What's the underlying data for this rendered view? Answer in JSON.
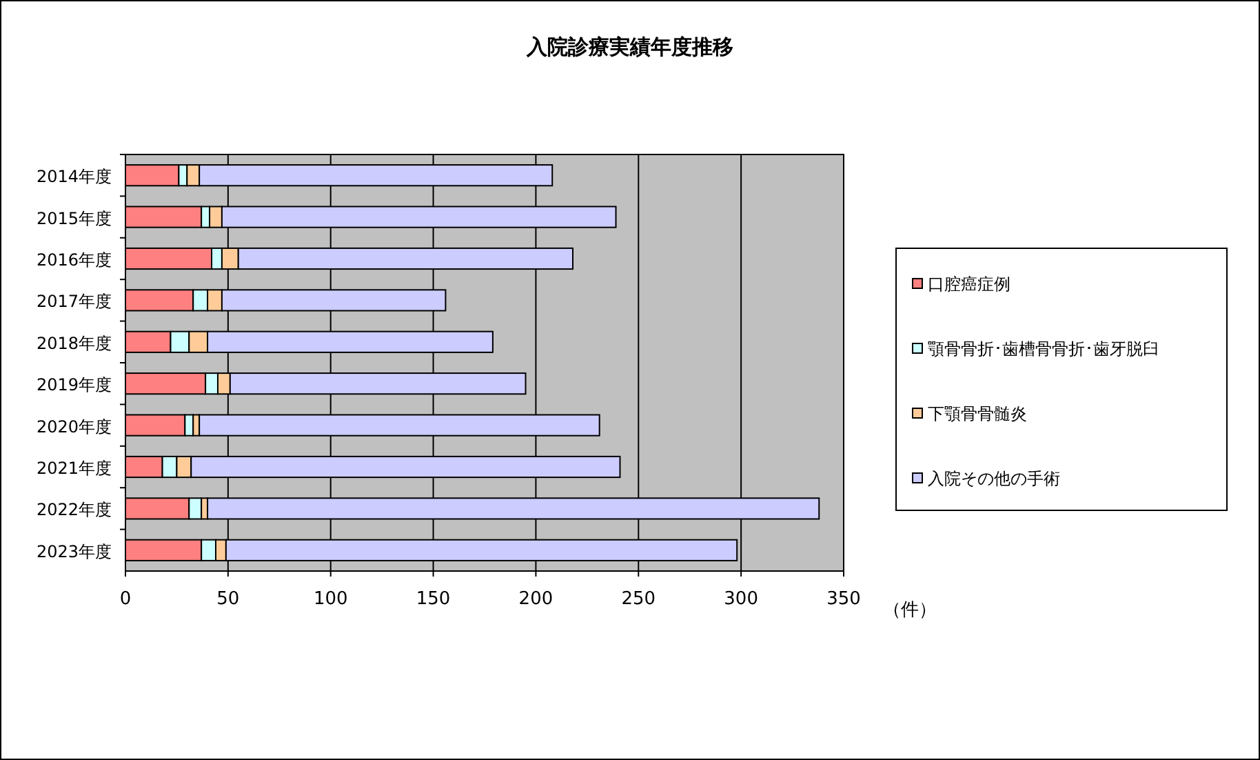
{
  "chart_data": {
    "type": "bar",
    "orientation": "horizontal",
    "stacked": true,
    "title": "入院診療実績年度推移",
    "xlabel": "（件）",
    "categories": [
      "2014年度",
      "2015年度",
      "2016年度",
      "2017年度",
      "2018年度",
      "2019年度",
      "2020年度",
      "2021年度",
      "2022年度",
      "2023年度"
    ],
    "series": [
      {
        "name": "口腔癌症例",
        "color": "#ff8080",
        "values": [
          26,
          37,
          42,
          33,
          22,
          39,
          29,
          18,
          31,
          37
        ]
      },
      {
        "name": "顎骨骨折･歯槽骨骨折･歯牙脱臼",
        "color": "#ccffff",
        "values": [
          4,
          4,
          5,
          7,
          9,
          6,
          4,
          7,
          6,
          7
        ]
      },
      {
        "name": "下顎骨骨髄炎",
        "color": "#ffcc99",
        "values": [
          6,
          6,
          8,
          7,
          9,
          6,
          3,
          7,
          3,
          5
        ]
      },
      {
        "name": "入院その他の手術",
        "color": "#ccccff",
        "values": [
          172,
          192,
          163,
          109,
          139,
          144,
          195,
          209,
          298,
          249
        ]
      }
    ],
    "xlim": [
      0,
      350
    ],
    "xticks": [
      0,
      50,
      100,
      150,
      200,
      250,
      300,
      350
    ],
    "grid": "x",
    "legend": "right"
  }
}
